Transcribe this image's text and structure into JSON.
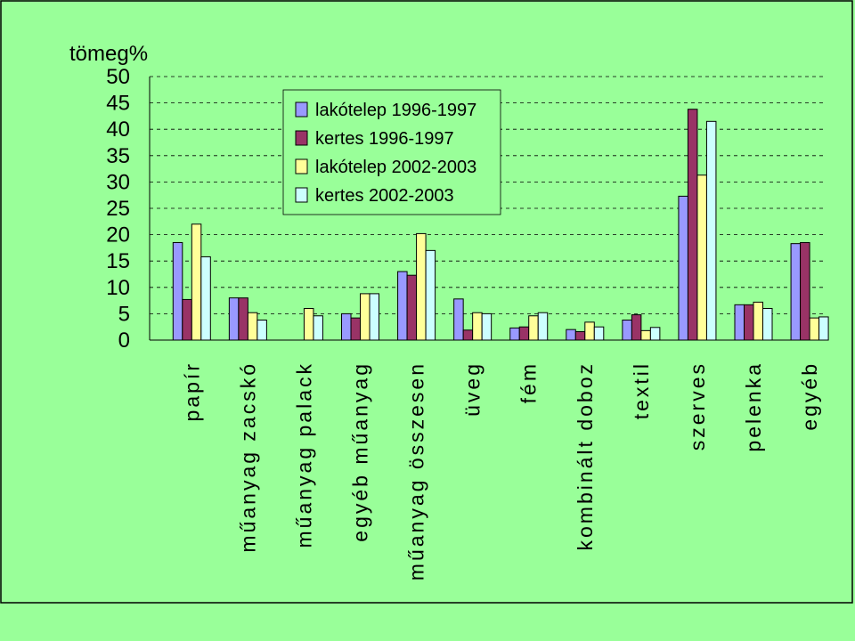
{
  "chart_data": {
    "type": "bar",
    "ylabel": "tömeg%",
    "ylim": [
      0,
      50
    ],
    "yticks": [
      0,
      5,
      10,
      15,
      20,
      25,
      30,
      35,
      40,
      45,
      50
    ],
    "grid": true,
    "legend_position": "top-center",
    "categories": [
      "papír",
      "műanyag zacskó",
      "műanyag palack",
      "egyéb műanyag",
      "műanyag összesen",
      "üveg",
      "fém",
      "kombinált doboz",
      "textil",
      "szerves",
      "pelenka",
      "egyéb"
    ],
    "series": [
      {
        "name": "lakótelep 1996-1997",
        "color": "#9999FF",
        "values": [
          18.5,
          8,
          0,
          5,
          13,
          7.8,
          2.3,
          2,
          3.8,
          27.3,
          6.7,
          18.3
        ]
      },
      {
        "name": "kertes 1996-1997",
        "color": "#993366",
        "values": [
          7.7,
          8,
          0,
          4.2,
          12.3,
          1.9,
          2.5,
          1.6,
          4.8,
          43.8,
          6.7,
          18.5
        ]
      },
      {
        "name": "lakótelep 2002-2003",
        "color": "#FFFF99",
        "values": [
          22,
          5.2,
          6,
          8.8,
          20.2,
          5.2,
          4.6,
          3.4,
          1.8,
          31.3,
          7.2,
          4.2
        ]
      },
      {
        "name": "kertes 2002-2003",
        "color": "#CCFFFF",
        "values": [
          15.8,
          3.8,
          4.6,
          8.8,
          17,
          5,
          5.2,
          2.5,
          2.4,
          41.5,
          6,
          4.4
        ]
      }
    ]
  }
}
